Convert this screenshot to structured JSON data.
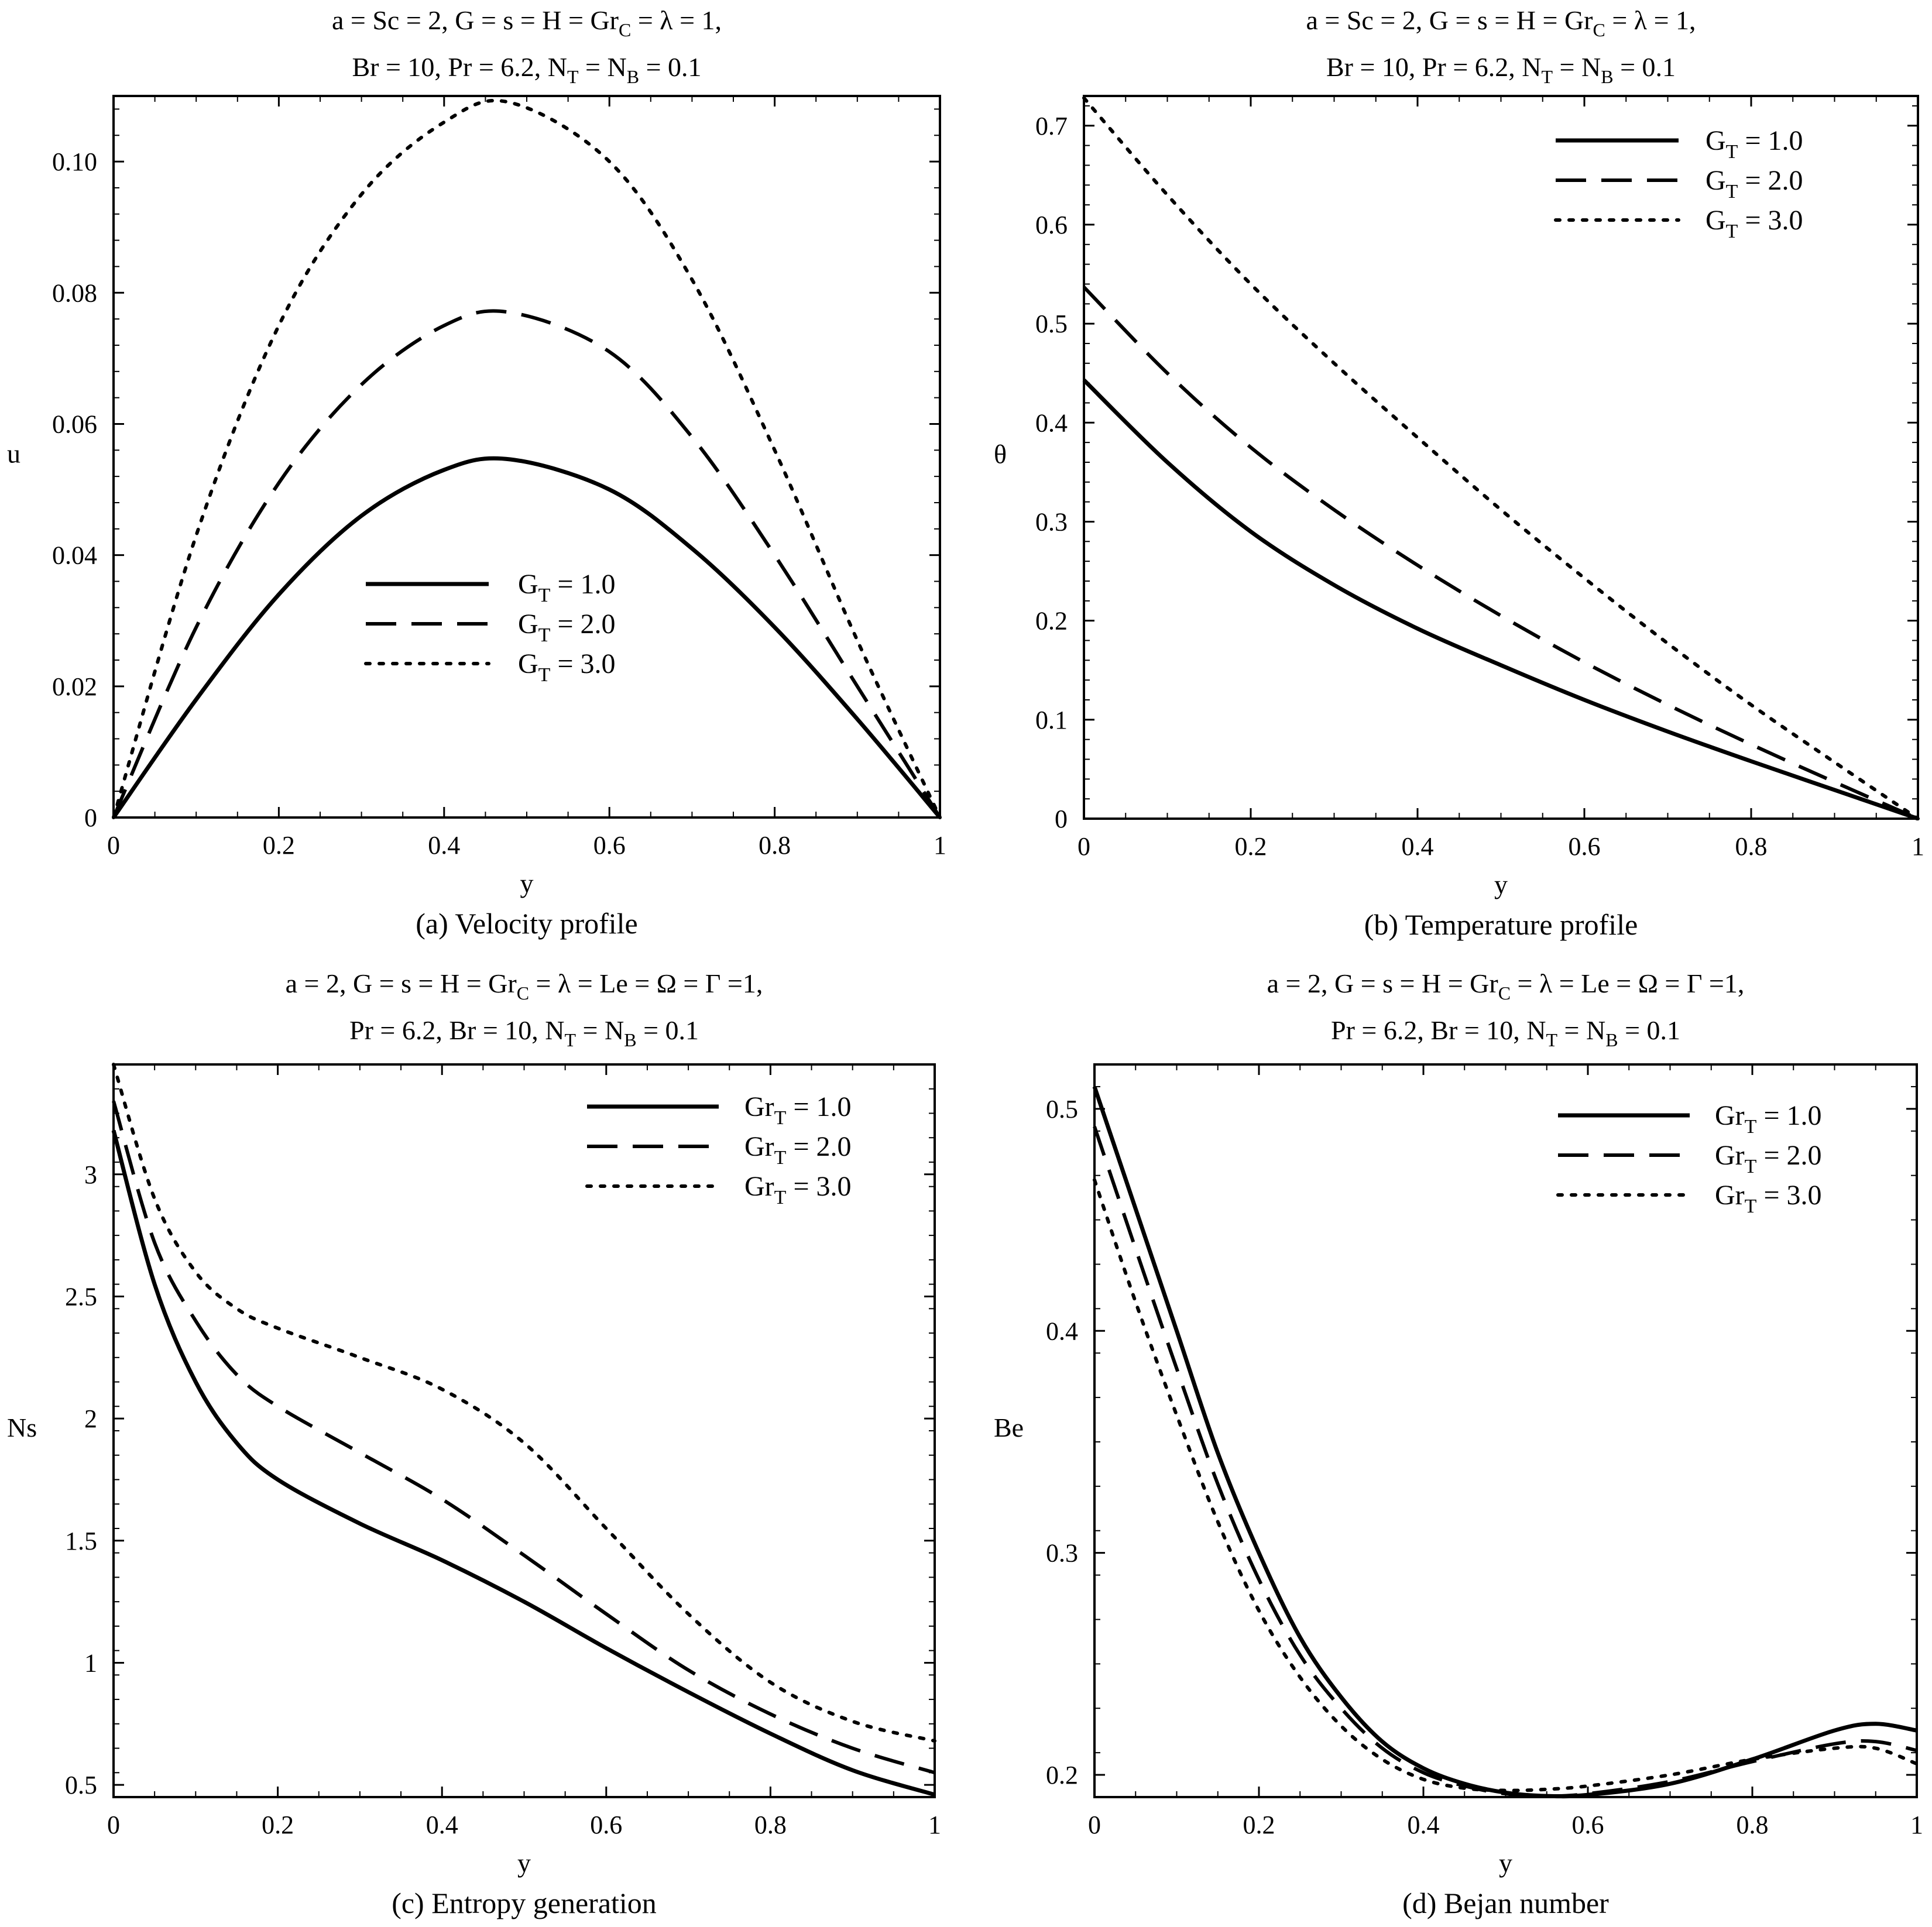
{
  "chart_data": [
    {
      "type": "line",
      "title_line1": "a = Sc = 2, G = s = H = Gr",
      "title_line1_sub": "C",
      "title_line1_tail": " =  λ = 1,",
      "title_line2": "Br = 10, Pr = 6.2, N",
      "title_line2_sub1": "T",
      "title_line2_mid": " = N",
      "title_line2_sub2": "B",
      "title_line2_tail": " = 0.1",
      "xlabel": "y",
      "ylabel": "u",
      "caption": "(a) Velocity profile",
      "xlim": [
        0,
        1
      ],
      "ylim": [
        0,
        0.11
      ],
      "xticks": [
        0,
        0.2,
        0.4,
        0.6,
        0.8,
        1
      ],
      "xtick_labels": [
        "0",
        "0.2",
        "0.4",
        "0.6",
        "0.8",
        "1"
      ],
      "yticks": [
        0,
        0.02,
        0.04,
        0.06,
        0.08,
        0.1
      ],
      "ytick_labels": [
        "0",
        "0.02",
        "0.04",
        "0.06",
        "0.08",
        "0.10"
      ],
      "legend_position": "center",
      "legend_symbol": "G",
      "legend_sub": "T",
      "series": [
        {
          "name": "1.0",
          "style": "solid",
          "legend_value": " = 1.0",
          "x": [
            0,
            0.1,
            0.2,
            0.3,
            0.4,
            0.48,
            0.6,
            0.7,
            0.8,
            0.9,
            1
          ],
          "y": [
            0,
            0.018,
            0.034,
            0.046,
            0.053,
            0.0546,
            0.05,
            0.041,
            0.029,
            0.015,
            0
          ]
        },
        {
          "name": "2.0",
          "style": "dashed",
          "legend_value": " = 2.0",
          "x": [
            0,
            0.1,
            0.2,
            0.3,
            0.4,
            0.48,
            0.6,
            0.7,
            0.8,
            0.9,
            1
          ],
          "y": [
            0,
            0.029,
            0.051,
            0.066,
            0.075,
            0.077,
            0.071,
            0.058,
            0.04,
            0.02,
            0
          ]
        },
        {
          "name": "3.0",
          "style": "dotted",
          "legend_value": " = 3.0",
          "x": [
            0,
            0.1,
            0.2,
            0.3,
            0.4,
            0.48,
            0.6,
            0.7,
            0.8,
            0.9,
            1
          ],
          "y": [
            0,
            0.043,
            0.075,
            0.095,
            0.106,
            0.109,
            0.1,
            0.082,
            0.056,
            0.027,
            0
          ]
        }
      ]
    },
    {
      "type": "line",
      "title_line1": "a = Sc = 2, G = s = H = Gr",
      "title_line1_sub": "C",
      "title_line1_tail": " =  λ = 1,",
      "title_line2": "Br = 10, Pr = 6.2, N",
      "title_line2_sub1": "T",
      "title_line2_mid": " = N",
      "title_line2_sub2": "B",
      "title_line2_tail": " = 0.1",
      "xlabel": "y",
      "ylabel": "θ",
      "caption": "(b) Temperature profile",
      "xlim": [
        0,
        1
      ],
      "ylim": [
        0,
        0.73
      ],
      "xticks": [
        0,
        0.2,
        0.4,
        0.6,
        0.8,
        1
      ],
      "xtick_labels": [
        "0",
        "0.2",
        "0.4",
        "0.6",
        "0.8",
        "1"
      ],
      "yticks": [
        0,
        0.1,
        0.2,
        0.3,
        0.4,
        0.5,
        0.6,
        0.7
      ],
      "ytick_labels": [
        "0",
        "0.1",
        "0.2",
        "0.3",
        "0.4",
        "0.5",
        "0.6",
        "0.7"
      ],
      "legend_position": "top-right",
      "legend_symbol": "G",
      "legend_sub": "T",
      "series": [
        {
          "name": "1.0",
          "style": "solid",
          "legend_value": " = 1.0",
          "x": [
            0,
            0.1,
            0.2,
            0.3,
            0.4,
            0.5,
            0.6,
            0.7,
            0.8,
            0.9,
            1
          ],
          "y": [
            0.443,
            0.36,
            0.29,
            0.236,
            0.192,
            0.155,
            0.12,
            0.088,
            0.058,
            0.029,
            0
          ]
        },
        {
          "name": "2.0",
          "style": "dashed",
          "legend_value": " = 2.0",
          "x": [
            0,
            0.1,
            0.2,
            0.3,
            0.4,
            0.5,
            0.6,
            0.7,
            0.8,
            0.9,
            1
          ],
          "y": [
            0.537,
            0.45,
            0.375,
            0.312,
            0.256,
            0.205,
            0.158,
            0.115,
            0.075,
            0.037,
            0
          ]
        },
        {
          "name": "3.0",
          "style": "dotted",
          "legend_value": " = 3.0",
          "x": [
            0,
            0.1,
            0.2,
            0.3,
            0.4,
            0.5,
            0.6,
            0.7,
            0.8,
            0.9,
            1
          ],
          "y": [
            0.728,
            0.63,
            0.54,
            0.46,
            0.385,
            0.312,
            0.243,
            0.177,
            0.115,
            0.057,
            0
          ]
        }
      ]
    },
    {
      "type": "line",
      "title_line1": "a = 2, G = s =  H = Gr",
      "title_line1_sub": "C",
      "title_line1_tail": " = λ = Le =  Ω = Γ =1,",
      "title_line2": "Pr = 6.2,  Br = 10, N",
      "title_line2_sub1": "T",
      "title_line2_mid": " = N",
      "title_line2_sub2": "B",
      "title_line2_tail": " = 0.1",
      "xlabel": "y",
      "ylabel": "Ns",
      "caption": "(c) Entropy generation",
      "xlim": [
        0,
        1
      ],
      "ylim": [
        0.45,
        3.45
      ],
      "xticks": [
        0,
        0.2,
        0.4,
        0.6,
        0.8,
        1
      ],
      "xtick_labels": [
        "0",
        "0.2",
        "0.4",
        "0.6",
        "0.8",
        "1"
      ],
      "yticks": [
        0.5,
        1,
        1.5,
        2,
        2.5,
        3
      ],
      "ytick_labels": [
        "0.5",
        "1",
        "1.5",
        "2",
        "2.5",
        "3"
      ],
      "legend_position": "top-right",
      "legend_symbol": "Gr",
      "legend_sub": "T",
      "series": [
        {
          "name": "1.0",
          "style": "solid",
          "legend_value": " = 1.0",
          "x": [
            0,
            0.05,
            0.1,
            0.15,
            0.2,
            0.3,
            0.4,
            0.5,
            0.6,
            0.7,
            0.8,
            0.9,
            1
          ],
          "y": [
            3.18,
            2.55,
            2.15,
            1.9,
            1.75,
            1.57,
            1.42,
            1.25,
            1.06,
            0.88,
            0.71,
            0.56,
            0.46
          ]
        },
        {
          "name": "2.0",
          "style": "dashed",
          "legend_value": " = 2.0",
          "x": [
            0,
            0.05,
            0.1,
            0.15,
            0.2,
            0.3,
            0.4,
            0.5,
            0.6,
            0.7,
            0.8,
            0.9,
            1
          ],
          "y": [
            3.3,
            2.72,
            2.4,
            2.18,
            2.05,
            1.86,
            1.67,
            1.44,
            1.2,
            0.97,
            0.79,
            0.65,
            0.55
          ]
        },
        {
          "name": "3.0",
          "style": "dotted",
          "legend_value": " = 3.0",
          "x": [
            0,
            0.05,
            0.1,
            0.15,
            0.2,
            0.3,
            0.4,
            0.5,
            0.6,
            0.7,
            0.8,
            0.9,
            1
          ],
          "y": [
            3.45,
            2.9,
            2.6,
            2.45,
            2.37,
            2.25,
            2.12,
            1.9,
            1.55,
            1.2,
            0.92,
            0.76,
            0.68
          ]
        }
      ]
    },
    {
      "type": "line",
      "title_line1": "a = 2, G = s =  H = Gr",
      "title_line1_sub": "C",
      "title_line1_tail": " = λ = Le =  Ω = Γ =1,",
      "title_line2": "Pr = 6.2,  Br = 10, N",
      "title_line2_sub1": "T",
      "title_line2_mid": " = N",
      "title_line2_sub2": "B",
      "title_line2_tail": " = 0.1",
      "xlabel": "y",
      "ylabel": "Be",
      "caption": "(d)  Bejan number",
      "xlim": [
        0,
        1
      ],
      "ylim": [
        0.19,
        0.52
      ],
      "xticks": [
        0,
        0.2,
        0.4,
        0.6,
        0.8,
        1
      ],
      "xtick_labels": [
        "0",
        "0.2",
        "0.4",
        "0.6",
        "0.8",
        "1"
      ],
      "yticks": [
        0.2,
        0.3,
        0.4,
        0.5
      ],
      "ytick_labels": [
        "0.2",
        "0.3",
        "0.4",
        "0.5"
      ],
      "legend_position": "top-right",
      "legend_symbol": "Gr",
      "legend_sub": "T",
      "series": [
        {
          "name": "1.0",
          "style": "solid",
          "legend_value": " = 1.0",
          "x": [
            0,
            0.05,
            0.1,
            0.15,
            0.2,
            0.25,
            0.3,
            0.35,
            0.4,
            0.45,
            0.5,
            0.55,
            0.6,
            0.7,
            0.8,
            0.9,
            0.95,
            1
          ],
          "y": [
            0.51,
            0.455,
            0.4,
            0.345,
            0.3,
            0.262,
            0.235,
            0.215,
            0.203,
            0.196,
            0.192,
            0.1905,
            0.191,
            0.196,
            0.207,
            0.22,
            0.223,
            0.22
          ]
        },
        {
          "name": "2.0",
          "style": "dashed",
          "legend_value": " = 2.0",
          "x": [
            0,
            0.05,
            0.1,
            0.15,
            0.2,
            0.25,
            0.3,
            0.35,
            0.4,
            0.45,
            0.5,
            0.55,
            0.6,
            0.7,
            0.8,
            0.9,
            0.95,
            1
          ],
          "y": [
            0.492,
            0.437,
            0.383,
            0.331,
            0.288,
            0.254,
            0.23,
            0.212,
            0.201,
            0.195,
            0.1915,
            0.1905,
            0.1915,
            0.197,
            0.206,
            0.214,
            0.215,
            0.211
          ]
        },
        {
          "name": "3.0",
          "style": "dotted",
          "legend_value": " = 3.0",
          "x": [
            0,
            0.05,
            0.1,
            0.15,
            0.2,
            0.25,
            0.3,
            0.35,
            0.4,
            0.45,
            0.5,
            0.55,
            0.6,
            0.7,
            0.8,
            0.9,
            0.95,
            1
          ],
          "y": [
            0.468,
            0.413,
            0.362,
            0.314,
            0.274,
            0.244,
            0.222,
            0.207,
            0.198,
            0.194,
            0.193,
            0.1935,
            0.195,
            0.2,
            0.207,
            0.212,
            0.212,
            0.205
          ]
        }
      ]
    }
  ]
}
